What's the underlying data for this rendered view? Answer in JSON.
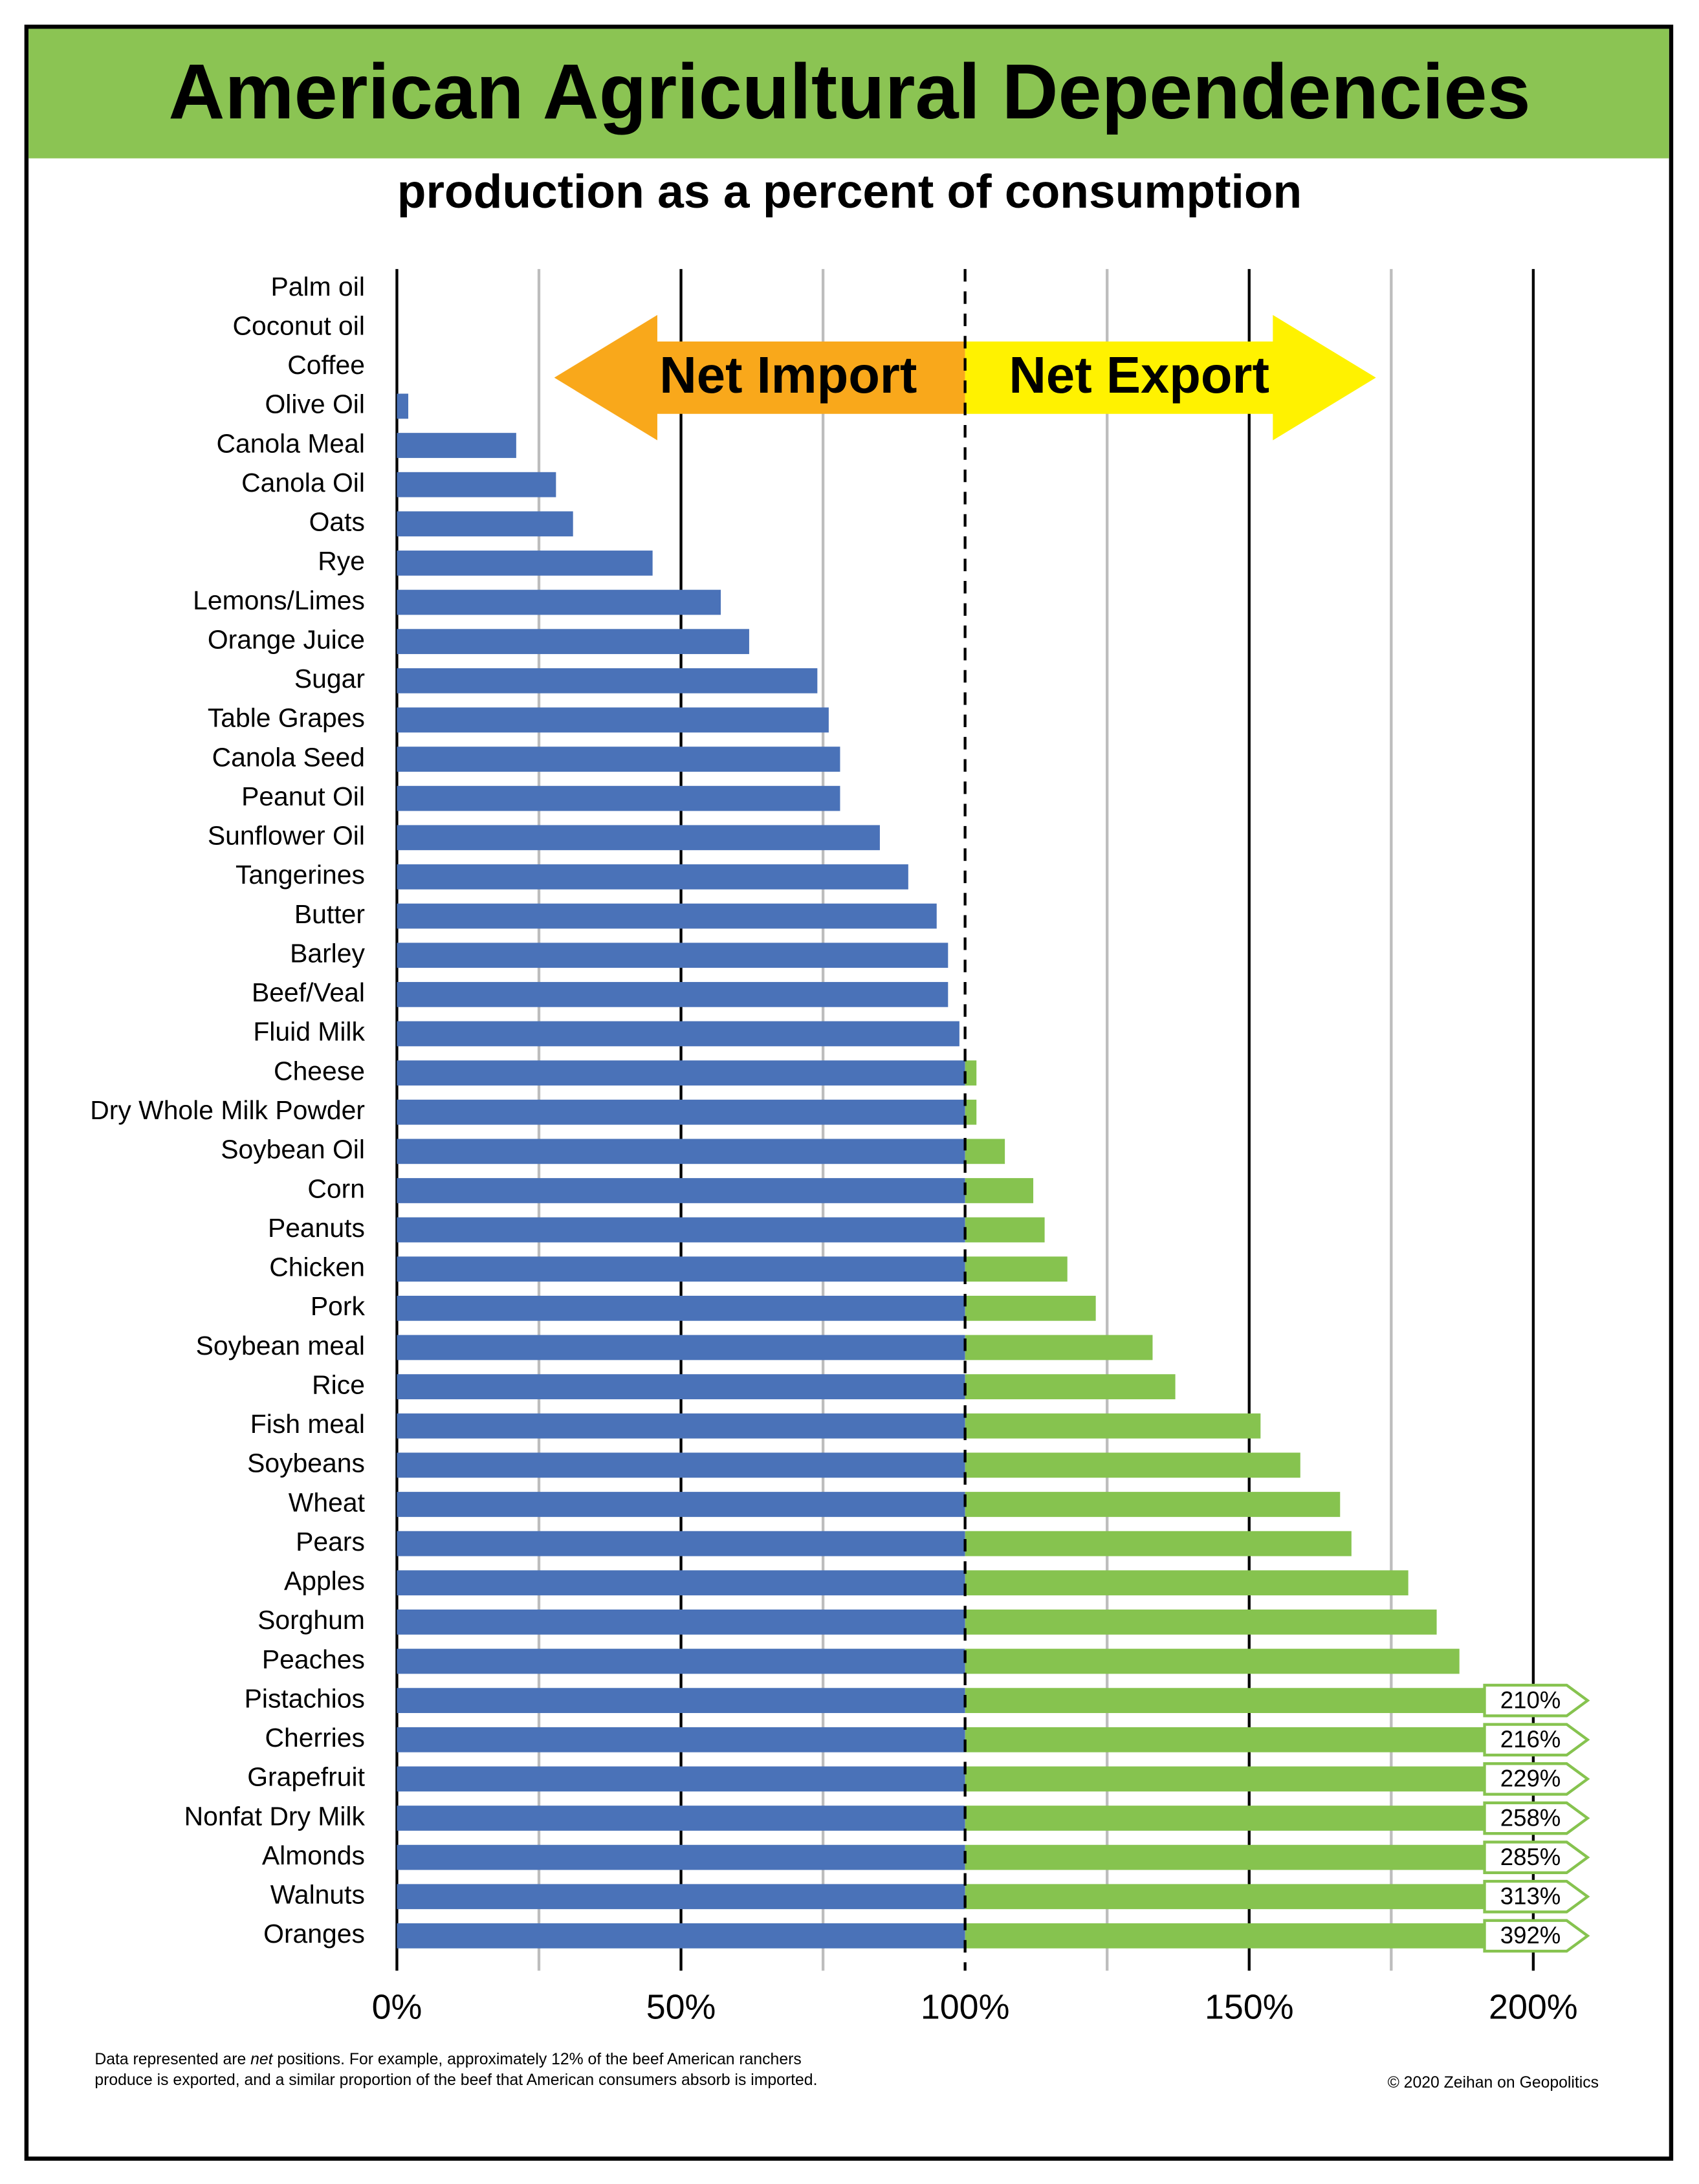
{
  "chart_data": {
    "type": "bar",
    "orientation": "horizontal",
    "title": "American Agricultural Dependencies",
    "subtitle": "production as a percent of consumption",
    "categories": [
      "Palm oil",
      "Coconut oil",
      "Coffee",
      "Olive Oil",
      "Canola Meal",
      "Canola Oil",
      "Oats",
      "Rye",
      "Lemons/Limes",
      "Orange Juice",
      "Sugar",
      "Table Grapes",
      "Canola Seed",
      "Peanut Oil",
      "Sunflower Oil",
      "Tangerines",
      "Butter",
      "Barley",
      "Beef/Veal",
      "Fluid Milk",
      "Cheese",
      "Dry Whole Milk Powder",
      "Soybean Oil",
      "Corn",
      "Peanuts",
      "Chicken",
      "Pork",
      "Soybean meal",
      "Rice",
      "Fish meal",
      "Soybeans",
      "Wheat",
      "Pears",
      "Apples",
      "Sorghum",
      "Peaches",
      "Pistachios",
      "Cherries",
      "Grapefruit",
      "Nonfat Dry Milk",
      "Almonds",
      "Walnuts",
      "Oranges"
    ],
    "values": [
      0,
      0,
      0,
      2,
      21,
      28,
      31,
      45,
      57,
      62,
      74,
      76,
      78,
      78,
      85,
      90,
      95,
      97,
      97,
      99,
      102,
      102,
      107,
      112,
      114,
      118,
      123,
      133,
      137,
      152,
      159,
      166,
      168,
      178,
      183,
      187,
      210,
      216,
      229,
      258,
      285,
      313,
      392
    ],
    "value_labels": [
      null,
      null,
      null,
      null,
      null,
      null,
      null,
      null,
      null,
      null,
      null,
      null,
      null,
      null,
      null,
      null,
      null,
      null,
      null,
      null,
      null,
      null,
      null,
      null,
      null,
      null,
      null,
      null,
      null,
      null,
      null,
      null,
      null,
      null,
      null,
      null,
      "210%",
      "216%",
      "229%",
      "258%",
      "285%",
      "313%",
      "392%"
    ],
    "import_color": "#4a72b8",
    "export_color": "#86c34f",
    "threshold": 100,
    "xlim": [
      0,
      200
    ],
    "xticks": [
      {
        "value": 0,
        "label": "0%"
      },
      {
        "value": 50,
        "label": "50%"
      },
      {
        "value": 100,
        "label": "100%"
      },
      {
        "value": 150,
        "label": "150%"
      },
      {
        "value": 200,
        "label": "200%"
      }
    ],
    "minor_xticks": [
      25,
      75,
      125,
      175
    ],
    "grid": true,
    "annotations": {
      "import": "Net Import",
      "export": "Net Export"
    },
    "footnote": [
      "Data represented are ",
      "net",
      " positions. For example, approximately 12% of the beef American ranchers",
      "produce is exported, and a similar proportion of the beef that American consumers absorb is imported."
    ],
    "copyright": "© 2020 Zeihan on Geopolitics"
  }
}
